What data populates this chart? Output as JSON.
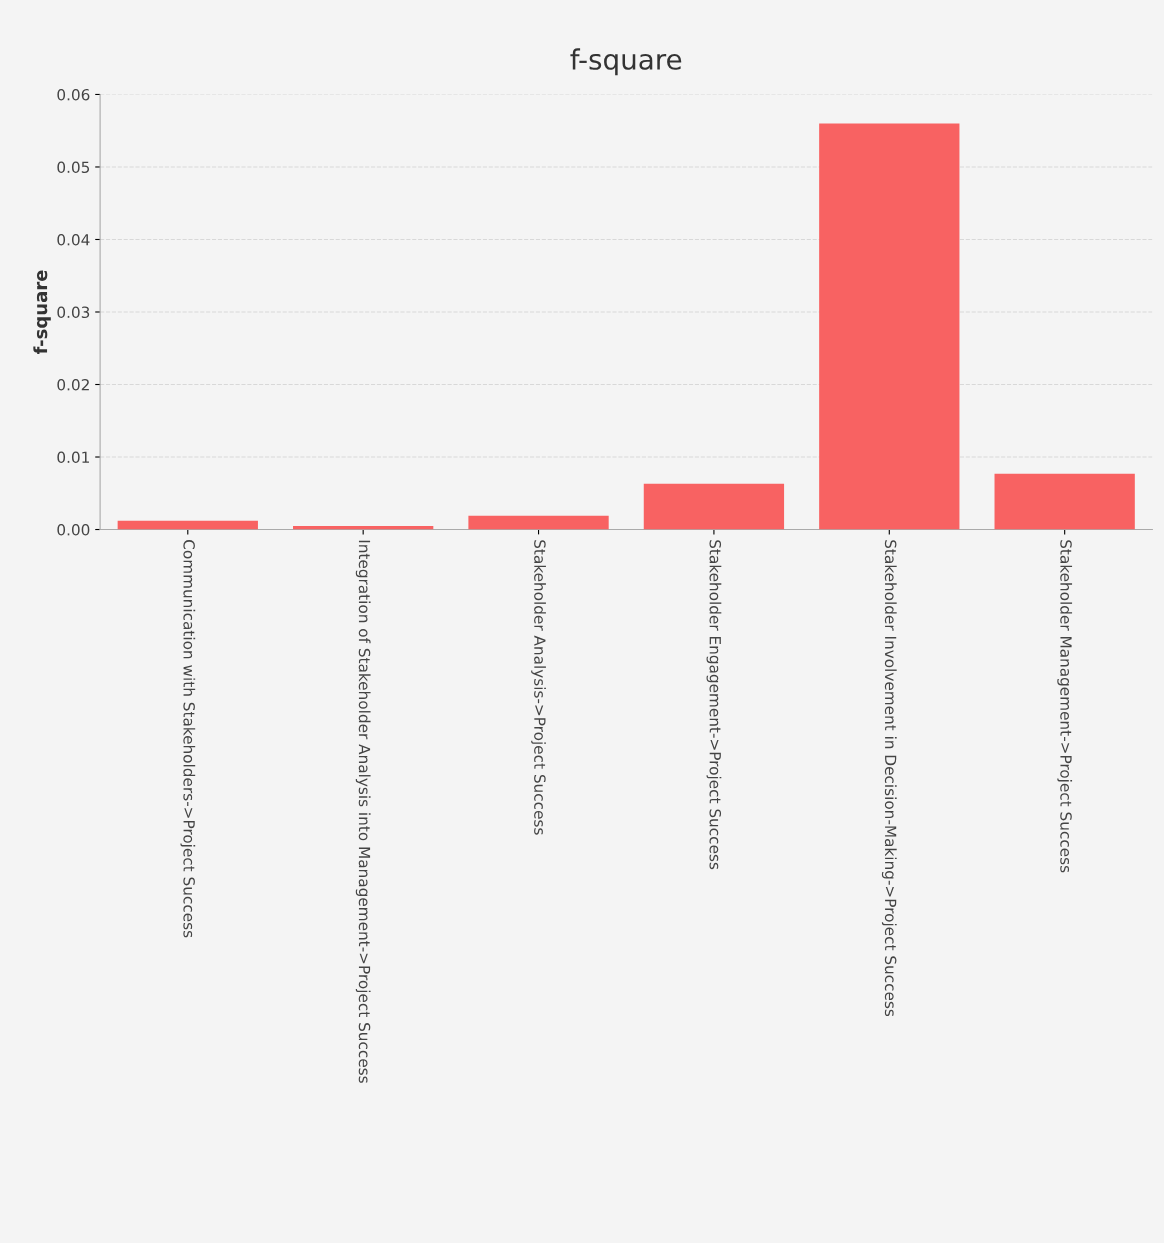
{
  "chart_data": {
    "type": "bar",
    "title": "f-square",
    "ylabel": "f-square",
    "categories": [
      "Communication with Stakeholders->Project Success",
      "Integration of Stakeholder Analysis into Management->Project Success",
      "Stakeholder Analysis->Project Success",
      "Stakeholder Engagement->Project Success",
      "Stakeholder Involvement in Decision-Making->Project Success",
      "Stakeholder Management->Project Success"
    ],
    "values": [
      0.0012,
      0.0005,
      0.0019,
      0.0063,
      0.056,
      0.0077
    ],
    "color": "#f86262",
    "ylim": [
      0,
      0.06
    ],
    "yticks": [
      {
        "value": 0,
        "label": "0.00"
      },
      {
        "value": 0.01,
        "label": "0.01"
      },
      {
        "value": 0.02,
        "label": "0.02"
      },
      {
        "value": 0.03,
        "label": "0.03"
      },
      {
        "value": 0.04,
        "label": "0.04"
      },
      {
        "value": 0.05,
        "label": "0.05"
      },
      {
        "value": 0.06,
        "label": "0.06"
      }
    ],
    "grid": "y",
    "legend": false
  }
}
